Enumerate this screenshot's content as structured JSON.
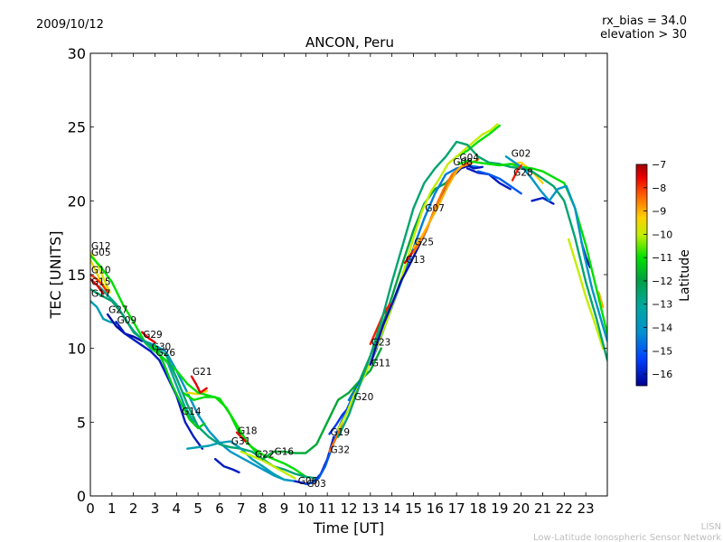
{
  "header": {
    "date": "2009/10/12",
    "rx_bias": "rx_bias = 34.0",
    "elevation": "elevation > 30"
  },
  "footer": {
    "org_short": "LISN",
    "org_full": "Low-Latitude Ionospheric Sensor Network"
  },
  "chart_data": {
    "type": "line",
    "title": "ANCON, Peru",
    "xlabel": "Time [UT]",
    "ylabel": "TEC [UNITS]",
    "xlim": [
      0,
      24
    ],
    "ylim": [
      0,
      30
    ],
    "xticks": [
      "0",
      "1",
      "2",
      "3",
      "4",
      "5",
      "6",
      "7",
      "8",
      "9",
      "10",
      "11",
      "12",
      "13",
      "14",
      "15",
      "16",
      "17",
      "18",
      "19",
      "20",
      "21",
      "22",
      "23"
    ],
    "yticks": [
      "0",
      "5",
      "10",
      "15",
      "20",
      "25",
      "30"
    ],
    "grid": false,
    "colorbar": {
      "label": "Latitude",
      "min": -16.5,
      "max": -7,
      "ticks": [
        "-7",
        "-8",
        "-9",
        "-10",
        "-11",
        "-12",
        "-13",
        "-14",
        "-15",
        "-16"
      ]
    },
    "series": [
      {
        "name": "G12",
        "lat": -9.8,
        "label_at": [
          0.0,
          16.7
        ],
        "x": [
          0.0,
          0.3,
          0.6,
          0.9
        ],
        "y": [
          16.5,
          15.8,
          14.8,
          13.8
        ]
      },
      {
        "name": "G05",
        "lat": -9.5,
        "label_at": [
          0.0,
          16.3
        ],
        "x": [
          0.0,
          0.2,
          0.5,
          0.8
        ],
        "y": [
          16.0,
          15.4,
          14.5,
          13.9
        ]
      },
      {
        "name": "G10",
        "lat": -8.0,
        "label_at": [
          0.0,
          15.1
        ],
        "x": [
          0.0,
          0.2,
          0.5,
          0.8
        ],
        "y": [
          15.0,
          14.8,
          14.4,
          13.8
        ]
      },
      {
        "name": "G15",
        "lat": -7.5,
        "label_at": [
          0.0,
          14.3
        ],
        "x": [
          0.0,
          0.3,
          0.6
        ],
        "y": [
          14.7,
          14.3,
          13.7
        ]
      },
      {
        "name": "G17",
        "lat": -13.6,
        "label_at": [
          0.0,
          13.5
        ],
        "x": [
          0.0,
          0.3,
          0.6,
          0.9,
          1.2
        ],
        "y": [
          13.2,
          12.8,
          12.0,
          11.8,
          11.7
        ]
      },
      {
        "name": "G27",
        "lat": -16.3,
        "label_at": [
          0.8,
          12.4
        ],
        "x": [
          0.8,
          1.2,
          1.6,
          2.0,
          2.4
        ],
        "y": [
          12.3,
          11.5,
          11.0,
          10.8,
          10.5
        ]
      },
      {
        "name": "G09",
        "lat": -16.0,
        "label_at": [
          1.2,
          11.7
        ],
        "x": [
          1.2,
          1.6,
          2.0,
          2.4,
          2.8,
          3.2,
          3.6,
          4.0,
          4.4,
          4.8,
          5.2
        ],
        "y": [
          11.8,
          11.0,
          10.6,
          10.2,
          9.8,
          9.2,
          8.0,
          6.8,
          5.0,
          4.0,
          3.2
        ]
      },
      {
        "name": "G29",
        "lat": -7.5,
        "label_at": [
          2.4,
          10.7
        ],
        "x": [
          2.4,
          2.7,
          3.0
        ],
        "y": [
          11.1,
          10.7,
          10.4
        ]
      },
      {
        "name": "G30",
        "lat": -11.0,
        "label_at": [
          2.8,
          9.9
        ],
        "x": [
          0.0,
          0.5,
          1.0,
          1.5,
          2.0,
          2.5,
          3.0,
          3.5,
          4.0,
          4.5,
          5.0,
          5.5,
          6.0,
          6.5,
          7.0,
          7.5,
          8.0,
          8.5,
          9.0,
          9.5,
          10.0
        ],
        "y": [
          16.3,
          15.5,
          14.5,
          13.0,
          11.8,
          10.5,
          9.8,
          9.2,
          8.5,
          7.6,
          7.0,
          6.8,
          6.6,
          5.5,
          4.0,
          3.3,
          2.8,
          2.5,
          2.2,
          1.8,
          1.3
        ]
      },
      {
        "name": "G26",
        "lat": -12.5,
        "label_at": [
          3.0,
          9.5
        ],
        "x": [
          0.0,
          0.5,
          1.0,
          1.5,
          2.0,
          2.5,
          3.0,
          3.5,
          4.0,
          4.5,
          5.0,
          5.5,
          6.0,
          6.5,
          7.0,
          7.5,
          8.0,
          8.5,
          9.0,
          9.5,
          10.0,
          10.5
        ],
        "y": [
          14.0,
          13.6,
          13.2,
          12.3,
          11.1,
          10.5,
          10.0,
          9.6,
          8.0,
          6.2,
          4.7,
          4.0,
          3.5,
          3.3,
          3.2,
          3.0,
          2.5,
          2.0,
          1.8,
          1.5,
          1.3,
          1.2
        ]
      },
      {
        "name": "G21",
        "lat": -7.5,
        "label_at": [
          4.7,
          8.2
        ],
        "x": [
          4.7,
          4.9,
          5.1,
          5.4
        ],
        "y": [
          8.1,
          7.6,
          7.0,
          7.3
        ]
      },
      {
        "name": "G14",
        "lat": -11.3,
        "label_at": [
          4.2,
          5.5
        ],
        "x": [
          3.0,
          3.4,
          3.8,
          4.2,
          4.6,
          5.0,
          5.3
        ],
        "y": [
          10.2,
          9.0,
          7.5,
          6.3,
          5.2,
          4.6,
          4.9
        ]
      },
      {
        "name": "G18",
        "lat": -7.5,
        "label_at": [
          6.8,
          4.2
        ],
        "x": [
          6.8,
          7.0,
          7.2
        ],
        "y": [
          4.3,
          4.0,
          3.7
        ]
      },
      {
        "name": "G31",
        "lat": -13.5,
        "label_at": [
          6.5,
          3.5
        ],
        "x": [
          4.5,
          5.0,
          5.5,
          6.0,
          6.5,
          7.0,
          7.5,
          8.0,
          8.5,
          9.0
        ],
        "y": [
          3.2,
          3.3,
          3.4,
          3.6,
          3.7,
          3.2,
          2.5,
          2.0,
          1.5,
          1.1
        ]
      },
      {
        "name": "G22",
        "lat": -10.0,
        "label_at": [
          7.6,
          2.6
        ],
        "x": [
          7.0,
          7.5,
          8.0,
          8.5,
          9.0,
          9.5
        ],
        "y": [
          3.0,
          2.7,
          2.4,
          2.0,
          1.6,
          1.2
        ]
      },
      {
        "name": "G16",
        "lat": -11.8,
        "label_at": [
          8.5,
          2.8
        ],
        "x": [
          8.0,
          8.5,
          9.0,
          9.5,
          10.0,
          10.5,
          11.0,
          11.5,
          12.0,
          12.5,
          13.0,
          13.5
        ],
        "y": [
          2.5,
          3.0,
          3.0,
          2.9,
          2.9,
          3.5,
          5.0,
          6.5,
          7.0,
          7.8,
          8.5,
          10.0
        ]
      },
      {
        "name": "G06",
        "lat": -16.0,
        "label_at": [
          9.6,
          0.8
        ],
        "x": [
          9.5,
          9.8,
          10.1,
          10.4,
          10.7,
          11.0,
          11.3
        ],
        "y": [
          1.0,
          0.9,
          0.8,
          1.0,
          1.5,
          2.5,
          4.0
        ]
      },
      {
        "name": "G03",
        "lat": -15.0,
        "label_at": [
          10.0,
          0.6
        ],
        "x": [
          10.0,
          10.3,
          10.6,
          10.9,
          11.2,
          11.5,
          11.8,
          12.1,
          12.4,
          12.7,
          13.0,
          13.3
        ],
        "y": [
          0.8,
          0.9,
          1.2,
          2.0,
          3.2,
          4.5,
          5.5,
          6.5,
          7.4,
          8.2,
          9.0,
          10.0
        ]
      },
      {
        "name": "G19",
        "lat": -15.5,
        "label_at": [
          11.1,
          4.1
        ],
        "x": [
          11.1,
          11.4,
          11.7,
          12.0
        ],
        "y": [
          4.2,
          4.8,
          5.5,
          6.0
        ]
      },
      {
        "name": "G32",
        "lat": -8.5,
        "label_at": [
          11.1,
          2.9
        ],
        "x": [
          11.1,
          11.3,
          11.5,
          11.7
        ],
        "y": [
          3.0,
          3.6,
          4.2,
          5.0
        ]
      },
      {
        "name": "G20",
        "lat": -10.0,
        "label_at": [
          12.2,
          6.5
        ],
        "x": [
          11.5,
          11.9,
          12.2,
          12.6,
          13.0,
          13.4,
          13.8,
          14.2,
          14.6,
          15.0,
          15.4,
          15.8,
          16.2,
          16.6,
          17.0,
          17.4,
          17.8,
          18.2,
          18.6,
          18.9
        ],
        "y": [
          4.5,
          5.6,
          6.7,
          7.8,
          9.0,
          10.5,
          12.0,
          13.7,
          15.5,
          17.5,
          19.3,
          20.6,
          21.5,
          22.5,
          23.0,
          23.5,
          24.0,
          24.5,
          24.8,
          25.2
        ]
      },
      {
        "name": "G23",
        "lat": -7.8,
        "label_at": [
          13.0,
          10.2
        ],
        "x": [
          13.0,
          13.3,
          13.6,
          13.9
        ],
        "y": [
          10.3,
          11.3,
          12.3,
          13.0
        ]
      },
      {
        "name": "G11",
        "lat": -16.2,
        "label_at": [
          13.0,
          8.8
        ],
        "x": [
          13.0,
          13.3,
          13.6,
          14.0,
          14.4,
          14.8,
          15.2,
          15.6,
          16.0,
          16.4,
          16.8,
          17.2,
          17.6
        ],
        "y": [
          8.9,
          10.3,
          11.6,
          13.0,
          14.5,
          15.6,
          16.8,
          18.0,
          19.5,
          20.7,
          21.6,
          22.2,
          22.4
        ]
      },
      {
        "name": "G13",
        "lat": -7.5,
        "label_at": [
          14.6,
          15.8
        ],
        "x": [
          14.6,
          14.9,
          15.2
        ],
        "y": [
          15.8,
          16.4,
          17.0
        ]
      },
      {
        "name": "G25",
        "lat": -8.5,
        "label_at": [
          15.0,
          17.0
        ],
        "x": [
          15.0,
          15.3,
          15.6,
          16.0,
          16.4,
          16.8,
          17.2,
          17.6,
          18.0
        ],
        "y": [
          16.5,
          17.2,
          18.0,
          19.5,
          20.8,
          21.8,
          22.3,
          22.5,
          22.8
        ]
      },
      {
        "name": "G07",
        "lat": -9.0,
        "label_at": [
          15.5,
          19.3
        ],
        "x": [
          15.0,
          15.4,
          15.8,
          16.2,
          16.6,
          17.0,
          17.4
        ],
        "y": [
          16.8,
          17.6,
          18.7,
          19.8,
          21.0,
          22.0,
          22.6
        ]
      },
      {
        "name": "G08",
        "lat": -12.5,
        "label_at": [
          16.8,
          22.4
        ],
        "x": [
          11.5,
          12.0,
          12.5,
          13.0,
          13.5,
          14.0,
          14.5,
          15.0,
          15.5,
          16.0,
          16.5,
          17.0,
          17.5,
          18.0,
          18.5,
          19.0,
          19.5,
          20.0,
          20.5,
          21.0,
          21.5,
          22.0,
          22.5,
          23.0,
          23.5,
          24.0
        ],
        "y": [
          4.0,
          5.5,
          7.5,
          9.5,
          11.8,
          14.5,
          17.0,
          19.5,
          21.2,
          22.2,
          23.0,
          24.0,
          23.8,
          23.0,
          22.6,
          22.5,
          22.3,
          22.2,
          22.0,
          21.5,
          21.0,
          20.0,
          17.5,
          14.5,
          12.0,
          9.2
        ]
      },
      {
        "name": "G04",
        "lat": -11.0,
        "label_at": [
          17.1,
          22.7
        ],
        "x": [
          17.1,
          17.5,
          18.0,
          18.5,
          19.0,
          19.5,
          20.0,
          20.5,
          21.0,
          21.5,
          22.0,
          22.5,
          23.0,
          23.5,
          24.0
        ],
        "y": [
          22.5,
          22.7,
          22.6,
          22.5,
          22.4,
          22.5,
          22.3,
          22.2,
          22.0,
          21.6,
          21.2,
          19.5,
          17.0,
          14.0,
          11.0
        ]
      },
      {
        "name": "G02",
        "lat": -14.0,
        "label_at": [
          19.5,
          23.0
        ],
        "x": [
          19.3,
          19.7,
          20.1,
          20.5,
          20.9,
          21.3,
          21.7,
          22.1,
          22.5,
          22.9,
          23.3,
          23.7,
          24.0
        ],
        "y": [
          23.0,
          22.6,
          22.2,
          21.5,
          20.7,
          20.0,
          20.8,
          21.0,
          19.5,
          16.5,
          14.0,
          12.0,
          10.5
        ]
      },
      {
        "name": "G28",
        "lat": -7.8,
        "label_at": [
          19.6,
          21.7
        ],
        "x": [
          19.6,
          19.8,
          20.0
        ],
        "y": [
          21.4,
          22.0,
          22.4
        ]
      }
    ],
    "extra_tracks": [
      {
        "lat": -9.3,
        "x": [
          19.5,
          20.0,
          20.5,
          21.0
        ],
        "y": [
          22.5,
          22.6,
          22.0,
          21.2
        ]
      },
      {
        "lat": -16.0,
        "x": [
          17.5,
          18.0,
          18.5,
          19.0,
          19.5
        ],
        "y": [
          22.2,
          21.9,
          21.8,
          21.2,
          20.8
        ]
      },
      {
        "lat": -16.0,
        "x": [
          20.5,
          21.0,
          21.5
        ],
        "y": [
          20.0,
          20.2,
          19.8
        ]
      },
      {
        "lat": -15.0,
        "x": [
          18.0,
          18.5,
          19.0,
          19.5,
          20.0
        ],
        "y": [
          22.0,
          21.8,
          21.5,
          21.0,
          20.5
        ]
      },
      {
        "lat": -10.0,
        "x": [
          22.2,
          22.6,
          23.0,
          23.4,
          23.8
        ],
        "y": [
          17.4,
          15.5,
          13.5,
          11.8,
          10.0
        ]
      },
      {
        "lat": -16.2,
        "x": [
          22.8,
          23.0,
          23.2
        ],
        "y": [
          17.2,
          16.2,
          15.5
        ]
      },
      {
        "lat": -9.0,
        "x": [
          23.6,
          23.8
        ],
        "y": [
          13.8,
          12.8
        ]
      },
      {
        "lat": -13.0,
        "x": [
          0.4,
          0.8,
          1.2,
          1.6,
          2.0,
          2.4,
          2.8,
          3.2,
          3.6,
          4.0,
          4.4,
          4.8
        ],
        "y": [
          14.2,
          13.6,
          13.0,
          12.0,
          11.2,
          10.6,
          10.0,
          9.6,
          9.0,
          7.5,
          6.0,
          5.0
        ]
      },
      {
        "lat": -14.0,
        "x": [
          2.5,
          3.0,
          3.5,
          4.0,
          4.5,
          5.0,
          5.5,
          6.0,
          6.5,
          7.0,
          7.5,
          8.0,
          8.5,
          9.0,
          9.5
        ],
        "y": [
          10.5,
          10.2,
          9.8,
          8.5,
          7.0,
          5.5,
          4.4,
          3.6,
          3.0,
          2.6,
          2.2,
          1.8,
          1.4,
          1.1,
          1.0
        ]
      },
      {
        "lat": -11.0,
        "x": [
          4.3,
          4.8,
          5.3,
          5.8,
          6.3,
          6.8,
          7.3,
          7.8
        ],
        "y": [
          7.0,
          6.5,
          6.7,
          6.7,
          6.0,
          4.8,
          3.6,
          2.8
        ]
      },
      {
        "lat": -9.5,
        "x": [
          4.5,
          5.0,
          5.4
        ],
        "y": [
          7.0,
          6.9,
          7.1
        ]
      },
      {
        "lat": -16.0,
        "x": [
          5.8,
          6.2,
          6.6,
          6.9
        ],
        "y": [
          2.5,
          2.0,
          1.8,
          1.6
        ]
      },
      {
        "lat": -11.0,
        "x": [
          17.0,
          17.5,
          18.0,
          18.5,
          19.0
        ],
        "y": [
          23.0,
          23.4,
          24.0,
          24.5,
          25.1
        ]
      },
      {
        "lat": -12.0,
        "x": [
          12.0,
          12.5,
          13.0,
          13.5,
          14.0,
          14.5,
          15.0,
          15.5,
          16.0,
          16.5,
          17.0
        ],
        "y": [
          6.5,
          7.8,
          9.5,
          11.3,
          13.5,
          15.8,
          18.0,
          19.8,
          20.8,
          21.2,
          22.0
        ]
      },
      {
        "lat": -14.5,
        "x": [
          12.0,
          12.5,
          13.0,
          13.5,
          14.0,
          14.5,
          15.0,
          15.5,
          16.0,
          16.5,
          17.0,
          17.5,
          18.0
        ],
        "y": [
          6.5,
          7.5,
          9.0,
          10.8,
          12.8,
          14.8,
          16.8,
          18.8,
          20.5,
          21.8,
          22.2,
          22.4,
          22.3
        ]
      },
      {
        "lat": -16.0,
        "x": [
          17.5,
          17.8,
          18.2
        ],
        "y": [
          22.4,
          22.2,
          22.3
        ]
      },
      {
        "lat": -7.5,
        "x": [
          17.3,
          17.5
        ],
        "y": [
          22.5,
          22.6
        ]
      }
    ]
  }
}
